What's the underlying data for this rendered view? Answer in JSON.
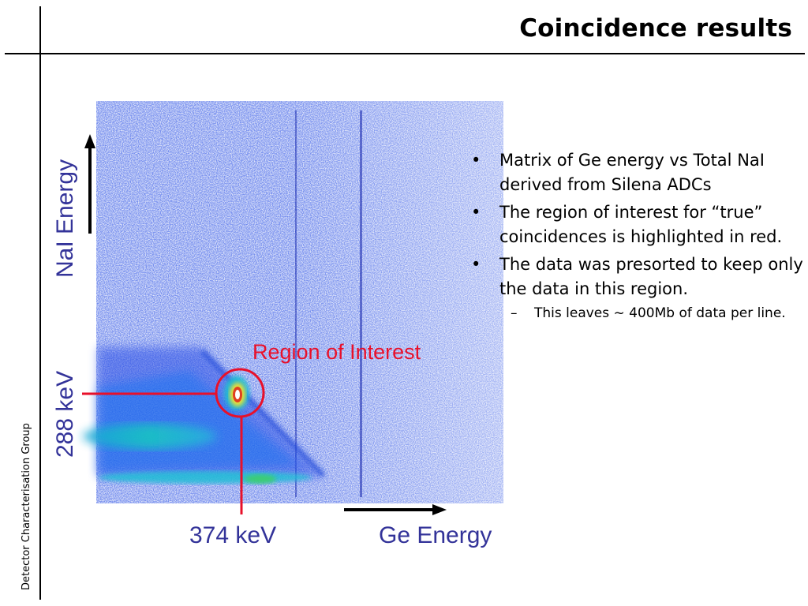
{
  "slide": {
    "title": "Coincidence results",
    "side_label": "Detector Characterisation Group"
  },
  "figure": {
    "y_axis_label": "NaI Energy",
    "x_axis_label": "Ge Energy",
    "roi_label": "Region of Interest",
    "ref_x_label": "374 keV",
    "ref_y_label": "288 keV",
    "colors": {
      "background_counts": "#2b3fd6",
      "band": "#18c0c0",
      "peak": "#ffff00",
      "annotation": "#e8102a",
      "label": "#333399"
    }
  },
  "bullets": [
    {
      "text": "Matrix of Ge energy vs Total NaI derived from Silena ADCs"
    },
    {
      "text": "The region of interest for “true” coincidences is highlighted in red."
    },
    {
      "text": "The data was presorted to keep only the data in this region."
    }
  ],
  "sub_bullets": [
    {
      "text": "This leaves ~ 400Mb of data per line."
    }
  ]
}
